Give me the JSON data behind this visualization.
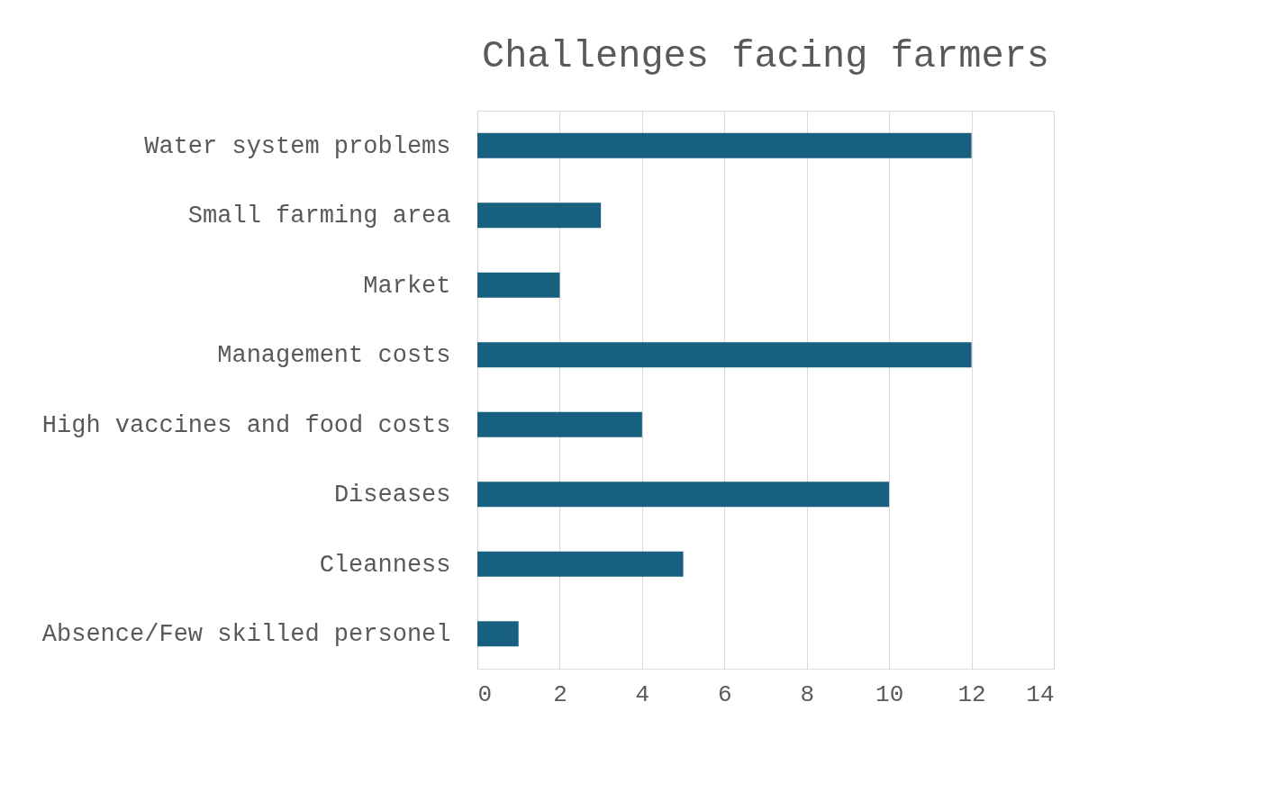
{
  "chart_data": {
    "type": "bar",
    "orientation": "horizontal",
    "title": "Challenges facing farmers",
    "categories": [
      "Water system problems",
      "Small farming area",
      "Market",
      "Management costs",
      "High vaccines and food  costs ",
      "Diseases",
      "Cleanness",
      "Absence/Few skilled personel"
    ],
    "values": [
      12,
      3,
      2,
      12,
      4,
      10,
      5,
      1
    ],
    "color": "#17607f",
    "xlim": [
      0,
      14
    ],
    "xticks": [
      0,
      2,
      4,
      6,
      8,
      10,
      12,
      14
    ],
    "grid": "x"
  }
}
